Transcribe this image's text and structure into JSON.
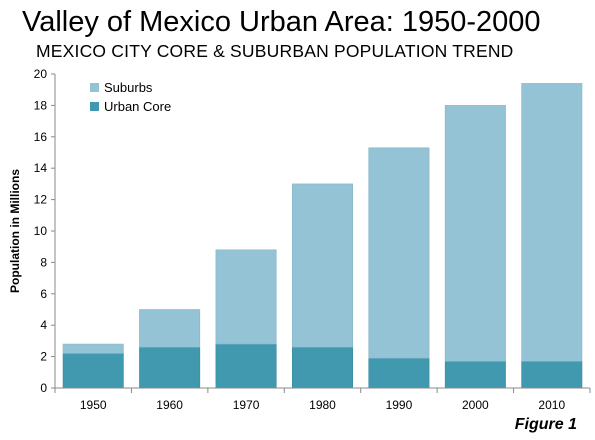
{
  "header": {
    "title": "Valley of Mexico Urban Area: 1950-2000",
    "subtitle": "MEXICO CITY CORE & SUBURBAN POPULATION TREND"
  },
  "footer": {
    "figure_label": "Figure 1"
  },
  "chart_data": {
    "type": "bar",
    "stacked": true,
    "title": "Valley of Mexico Urban Area: 1950-2000",
    "subtitle": "MEXICO CITY CORE & SUBURBAN POPULATION TREND",
    "xlabel": "",
    "ylabel": "Population in Millions",
    "categories": [
      "1950",
      "1960",
      "1970",
      "1980",
      "1990",
      "2000",
      "2010"
    ],
    "series": [
      {
        "name": "Urban Core",
        "values": [
          2.2,
          2.6,
          2.8,
          2.6,
          1.9,
          1.7,
          1.7
        ],
        "color": "#4199b0"
      },
      {
        "name": "Suburbs",
        "values": [
          0.6,
          2.4,
          6.0,
          10.4,
          13.4,
          16.3,
          17.7
        ],
        "color": "#93c3d4"
      }
    ],
    "ylim": [
      0,
      20
    ],
    "yticks": [
      0,
      2,
      4,
      6,
      8,
      10,
      12,
      14,
      16,
      18,
      20
    ],
    "grid": false,
    "legend": {
      "position": "top-left",
      "entries": [
        "Suburbs",
        "Urban Core"
      ]
    }
  }
}
